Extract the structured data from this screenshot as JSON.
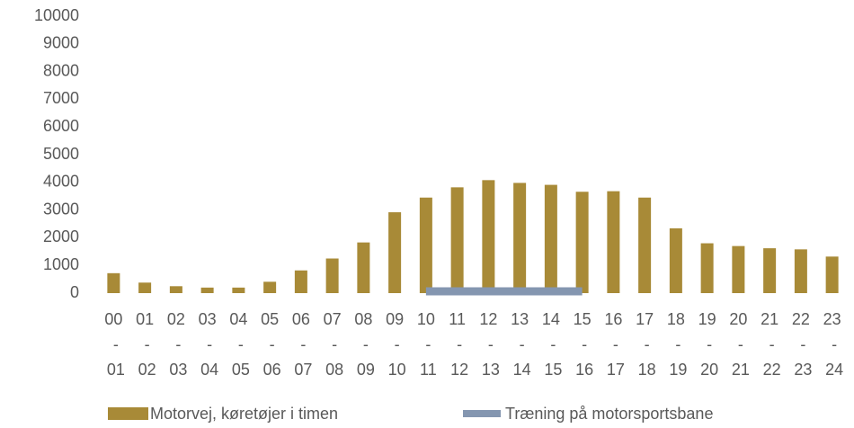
{
  "chart_data": {
    "type": "bar",
    "categories": [
      "00 - 01",
      "01 - 02",
      "02 - 03",
      "03 - 04",
      "04 - 05",
      "05 - 06",
      "06 - 07",
      "07 - 08",
      "08 - 09",
      "09 - 10",
      "10 - 11",
      "11 - 12",
      "12 - 13",
      "13 - 14",
      "14 - 15",
      "15 - 16",
      "16 - 17",
      "17 - 18",
      "18 - 19",
      "19 - 20",
      "20 - 21",
      "21 - 22",
      "22 - 23",
      "23 - 24"
    ],
    "series": [
      {
        "name": "Motorvej, køretøjer i timen",
        "color": "#a88a37",
        "type": "bar",
        "values": [
          720,
          380,
          250,
          200,
          200,
          410,
          820,
          1250,
          1830,
          2920,
          3450,
          3820,
          4080,
          3980,
          3910,
          3660,
          3680,
          3450,
          2340,
          1800,
          1700,
          1620,
          1580,
          1320
        ]
      },
      {
        "name": "Træning på motorsportsbane",
        "color": "#8496b0",
        "type": "line",
        "values": [
          null,
          null,
          null,
          null,
          null,
          null,
          null,
          null,
          null,
          null,
          0,
          0,
          0,
          0,
          0,
          0,
          null,
          null,
          null,
          null,
          null,
          null,
          null,
          null
        ]
      }
    ],
    "ylim": [
      0,
      10000
    ],
    "yticks": [
      0,
      1000,
      2000,
      3000,
      4000,
      5000,
      6000,
      7000,
      8000,
      9000,
      10000
    ],
    "grid": false,
    "legend": "bottom"
  }
}
